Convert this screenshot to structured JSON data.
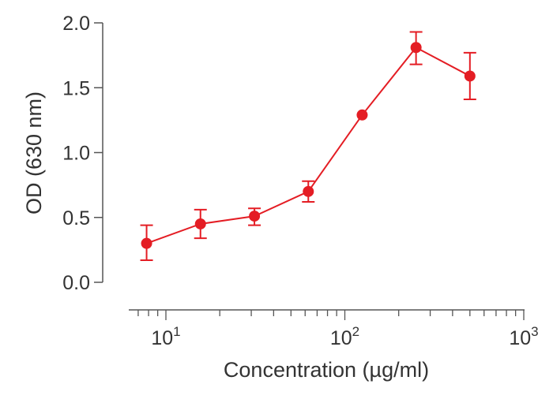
{
  "chart_data": {
    "type": "line",
    "xlabel": "Concentration (µg/ml)",
    "ylabel": "OD (630 nm)",
    "x_scale": "log",
    "xlim": [
      6.5,
      1000
    ],
    "ylim": [
      0.0,
      2.0
    ],
    "x_ticks": [
      {
        "value": 10,
        "base": "10",
        "exp": "1"
      },
      {
        "value": 100,
        "base": "10",
        "exp": "2"
      },
      {
        "value": 1000,
        "base": "10",
        "exp": "3"
      }
    ],
    "y_ticks": [
      "0.0",
      "0.5",
      "1.0",
      "1.5",
      "2.0"
    ],
    "grid": false,
    "color": "#e41d24",
    "series": [
      {
        "x": [
          7.8,
          15.6,
          31.25,
          62.5,
          125,
          250,
          500
        ],
        "y": [
          0.3,
          0.45,
          0.51,
          0.7,
          1.29,
          1.81,
          1.59
        ],
        "err_low": [
          0.17,
          0.34,
          0.44,
          0.62,
          null,
          1.68,
          1.41
        ],
        "err_high": [
          0.44,
          0.56,
          0.57,
          0.78,
          null,
          1.93,
          1.77
        ]
      }
    ]
  }
}
